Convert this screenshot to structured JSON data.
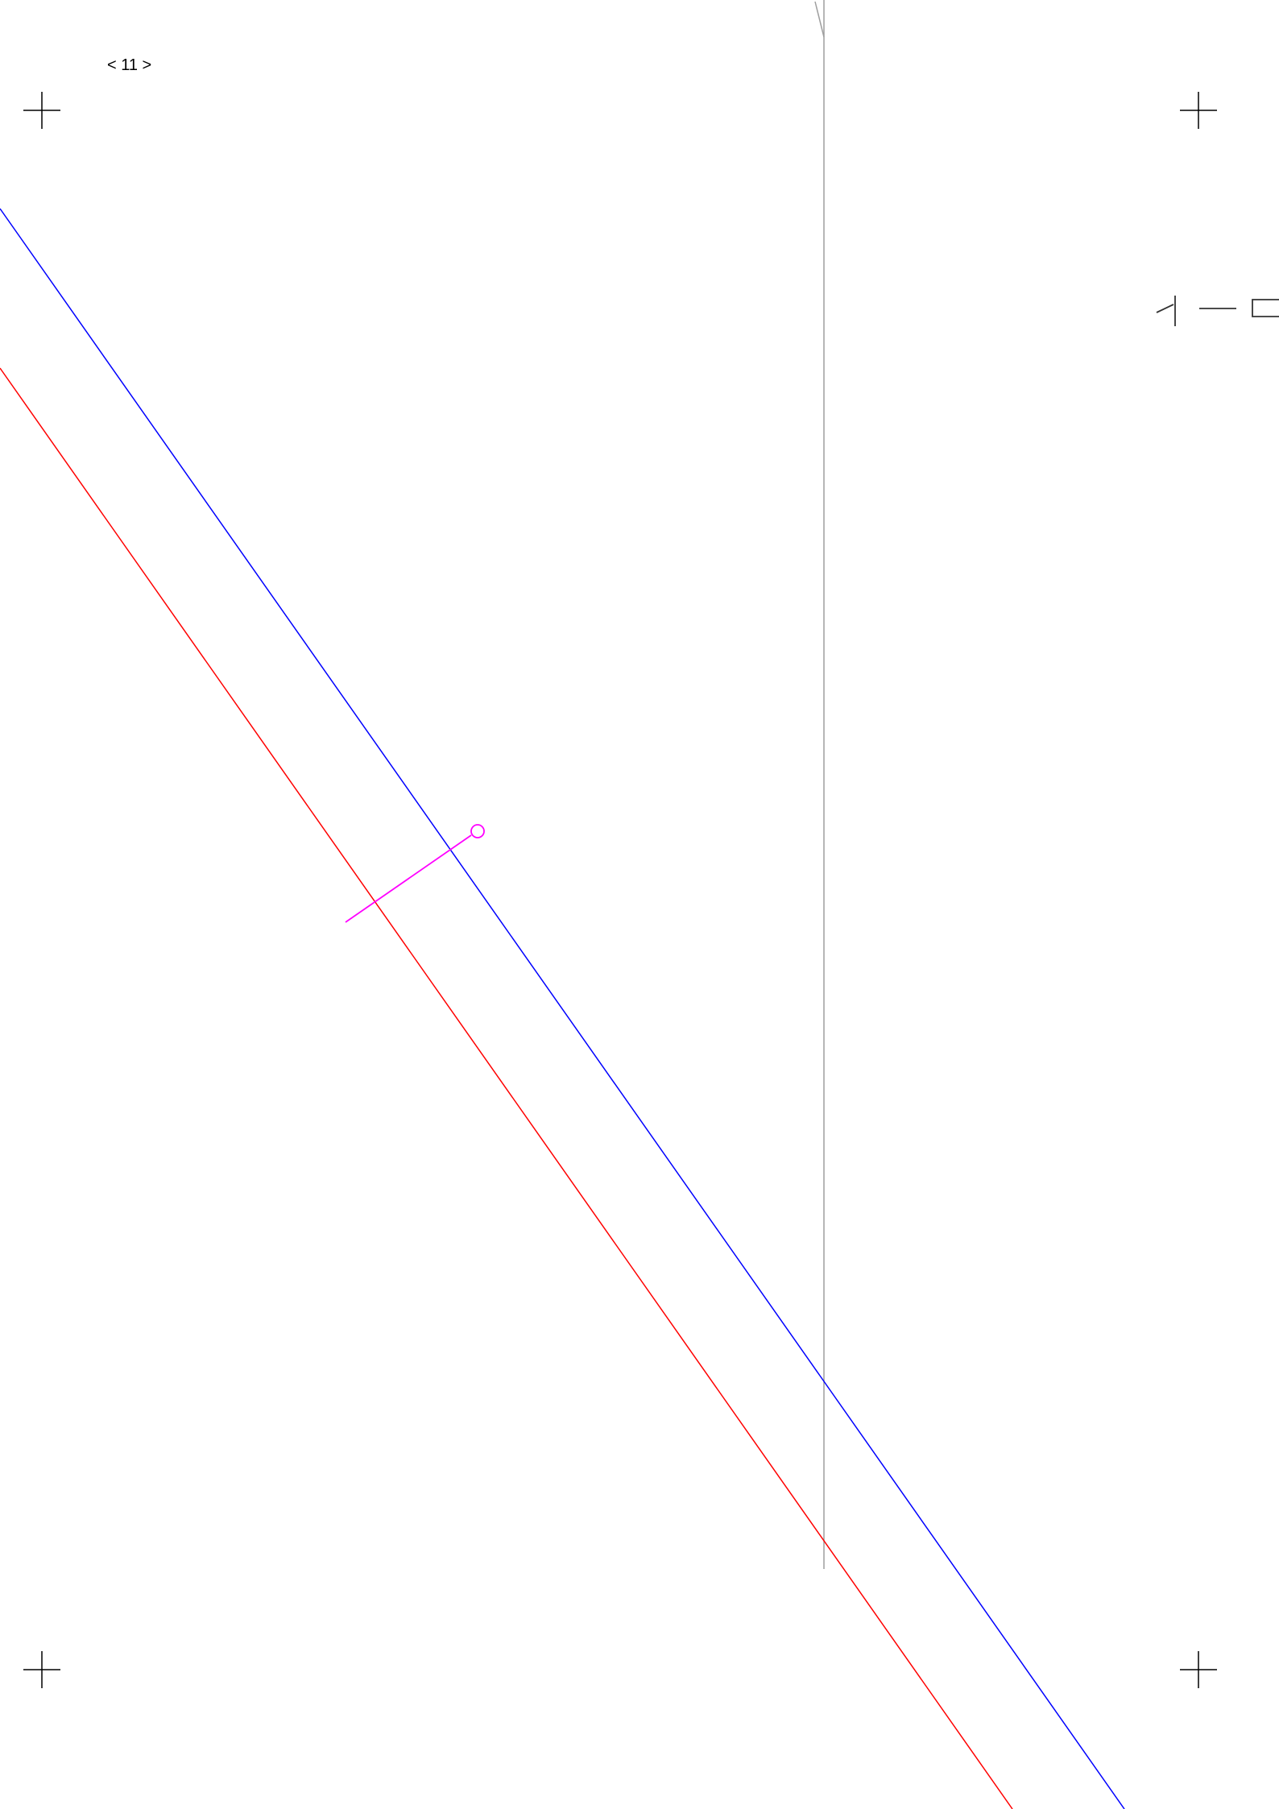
{
  "page_label": "< 11 >",
  "colors": {
    "background": "#ffffff",
    "registration_mark": "#000000",
    "reference_line": "#9e9e9e",
    "blue_line": "#0000ff",
    "red_line": "#ff0000",
    "magenta_marker": "#ff00ff",
    "edge_glyphs": "#333333"
  },
  "icons": {
    "registration_mark": "crosshair-icon",
    "marker_handle": "circle-handle-icon",
    "edge_glyphs": "cropped-glyph-icon"
  }
}
